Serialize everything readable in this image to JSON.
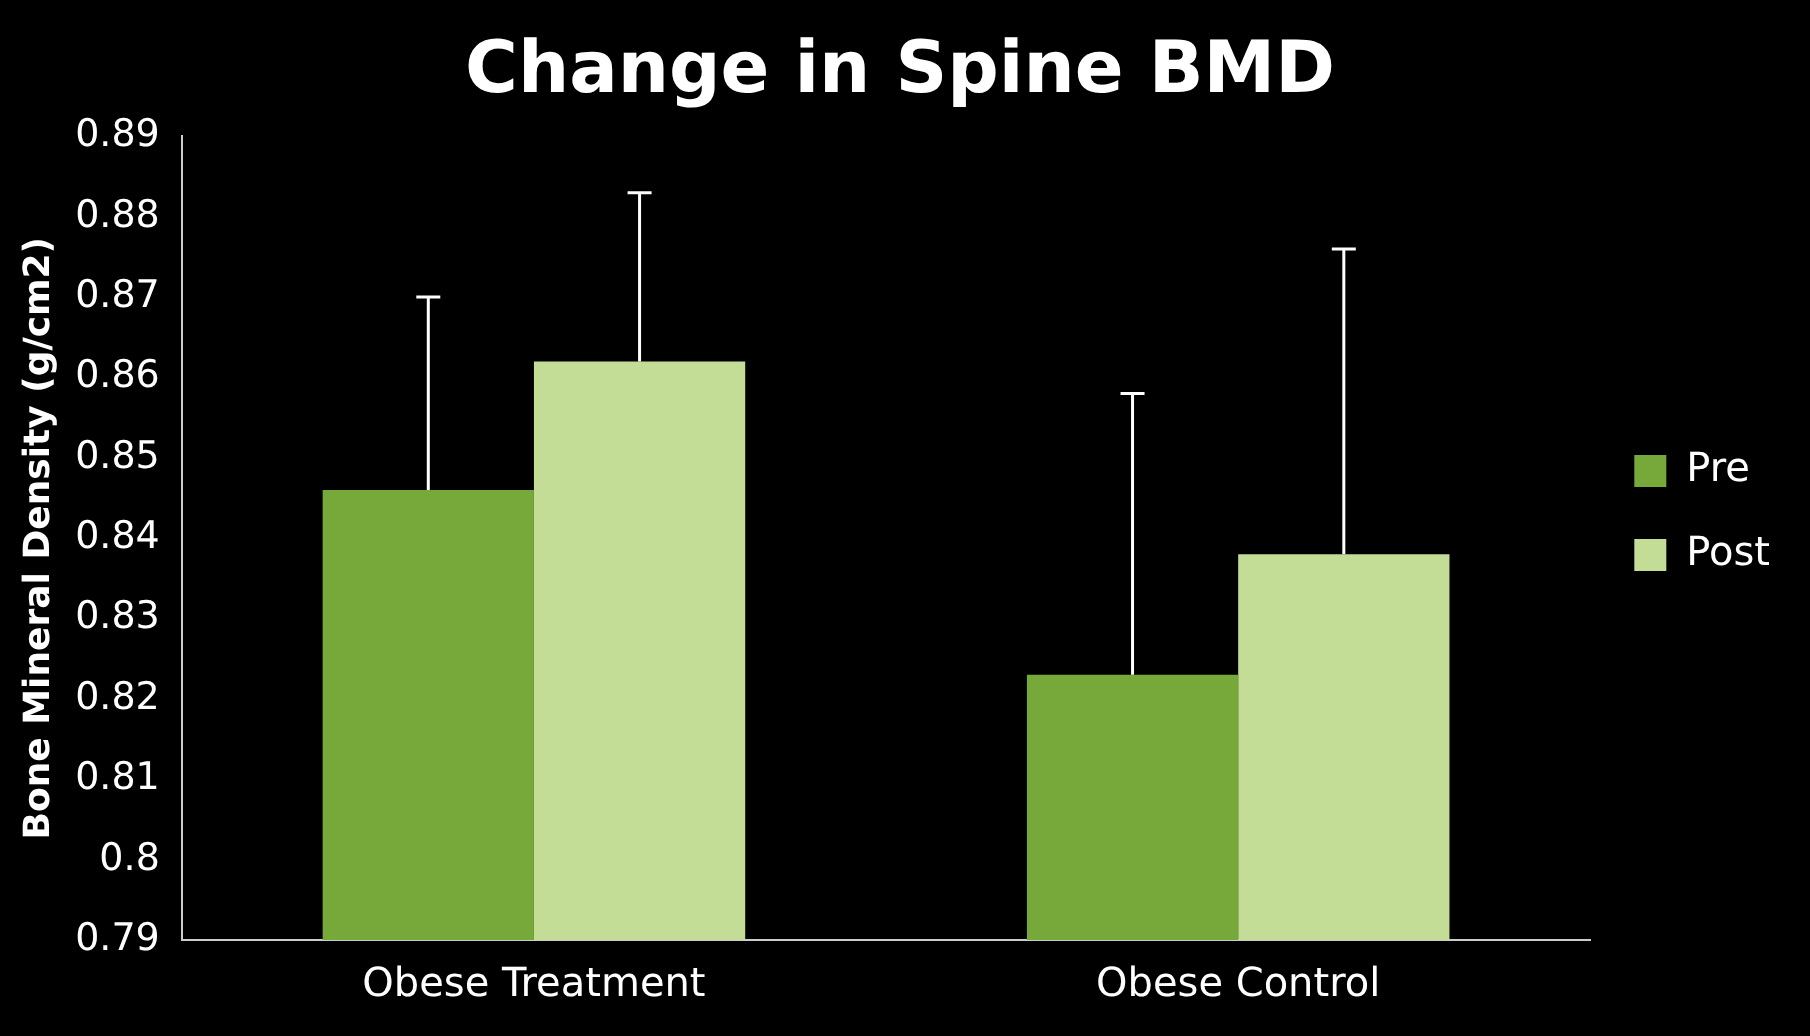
{
  "chart_data": {
    "type": "bar",
    "title": "Change in Spine BMD",
    "ylabel": "Bone Mineral Density (g/cm2)",
    "categories": [
      "Obese Treatment",
      "Obese Control"
    ],
    "series": [
      {
        "name": "Pre",
        "color": "#77a83a",
        "values": [
          0.846,
          0.823
        ],
        "errors": [
          [
            0.846,
            0.87
          ],
          [
            0.823,
            0.858
          ]
        ]
      },
      {
        "name": "Post",
        "color": "#c3dc96",
        "values": [
          0.862,
          0.838
        ],
        "errors": [
          [
            0.862,
            0.883
          ],
          [
            0.838,
            0.876
          ]
        ]
      }
    ],
    "ylim": [
      0.79,
      0.89
    ],
    "yticks": [
      0.79,
      0.8,
      0.81,
      0.82,
      0.83,
      0.84,
      0.85,
      0.86,
      0.87,
      0.88,
      0.89
    ],
    "grid": false,
    "legend": "right"
  }
}
